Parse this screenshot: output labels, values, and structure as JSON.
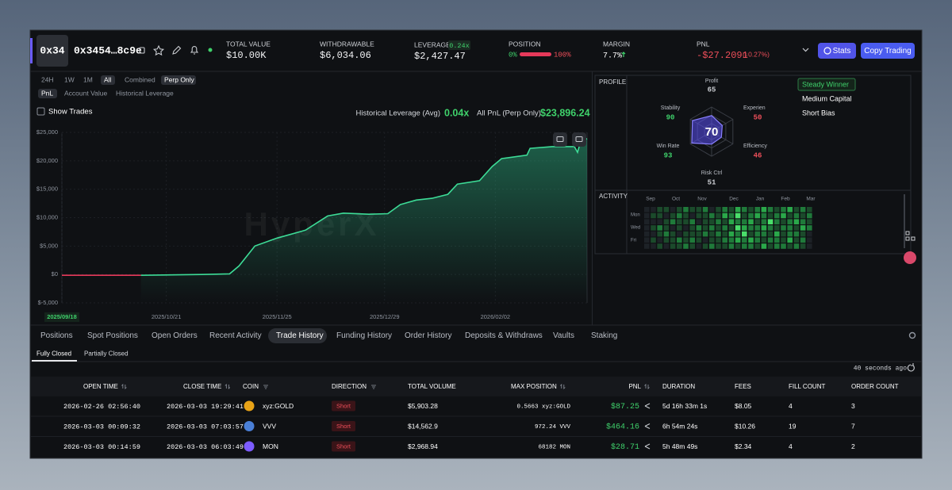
{
  "header": {
    "avatar": "0x34",
    "address": "0x3454…8c9e",
    "total_value": {
      "label": "TOTAL VALUE",
      "value": "$10.00K"
    },
    "withdrawable": {
      "label": "WITHDRAWABLE",
      "value": "$6,034.06"
    },
    "leverage": {
      "label": "LEVERAGE",
      "badge": "0.24x",
      "value": "$2,427.47"
    },
    "position": {
      "label": "POSITION",
      "long": "0%",
      "short": "100%"
    },
    "margin": {
      "label": "MARGIN",
      "value": "7.7%"
    },
    "pnl": {
      "label": "PNL",
      "value": "-$27.2091",
      "change": "(↓0.27%)"
    },
    "buttons": [
      "Stats",
      "Copy Trading"
    ]
  },
  "controls": {
    "ranges": [
      "24H",
      "1W",
      "1M",
      "All"
    ],
    "active_range": 3,
    "modes": [
      "Combined",
      "Perp Only"
    ],
    "active_mode": 1,
    "metrics": [
      "PnL",
      "Account Value",
      "Historical Leverage"
    ],
    "active_metric": 0,
    "show_trades": "Show Trades",
    "leverage_label": "Historical Leverage (Avg)",
    "leverage_value": "0.04x",
    "pnl_label": "All PnL (Perp Only)",
    "pnl_value": "$23,896.24"
  },
  "chart_data": {
    "type": "line",
    "watermark": "HyperX",
    "x": [
      "2025/09/18",
      "2025/10/13",
      "2025/11/01",
      "2025/11/10",
      "2025/11/13",
      "2025/11/18",
      "2025/11/25",
      "2025/12/04",
      "2025/12/11",
      "2025/12/16",
      "2025/12/24",
      "2025/12/30",
      "2026/01/03",
      "2026/01/08",
      "2026/01/13",
      "2026/01/18",
      "2026/01/21",
      "2026/01/28",
      "2026/02/01",
      "2026/02/04",
      "2026/02/12",
      "2026/02/13",
      "2026/02/20",
      "2026/02/27",
      "2026/02/28",
      "2026/03/01",
      "2026/03/03"
    ],
    "series": [
      {
        "color": "#e5395a",
        "values": [
          -150,
          -150,
          null,
          null,
          null,
          null,
          null,
          null,
          null,
          null,
          null,
          null,
          null,
          null,
          null,
          null,
          null,
          null,
          null,
          null,
          null,
          null,
          null,
          null,
          null,
          null,
          null
        ]
      },
      {
        "color": "#3ddc97",
        "values": [
          null,
          -150,
          0,
          100,
          1500,
          5000,
          6400,
          7800,
          10300,
          10800,
          10600,
          10700,
          12300,
          13100,
          13400,
          14100,
          15900,
          16500,
          19000,
          20400,
          21000,
          22200,
          22500,
          22500,
          21500,
          23500,
          23900
        ]
      }
    ],
    "xlim": [
      "2025/09/18",
      "2026/03/03"
    ],
    "xticks": [
      "2025/09/18",
      "2025/10/21",
      "2025/11/25",
      "2025/12/29",
      "2026/02/02"
    ],
    "ylim": [
      -5000,
      25000
    ],
    "yticks": [
      {
        "value": -5000,
        "label": "$-5,000"
      },
      {
        "value": 0,
        "label": "$0"
      },
      {
        "value": 5000,
        "label": "$5,000"
      },
      {
        "value": 10000,
        "label": "$10,000"
      },
      {
        "value": 15000,
        "label": "$15,000"
      },
      {
        "value": 20000,
        "label": "$20,000"
      },
      {
        "value": 25000,
        "label": "$25,000"
      }
    ],
    "grid": true
  },
  "profile": {
    "title": "PROFILE",
    "score": 70,
    "metrics": [
      {
        "label": "Profit",
        "value": 65,
        "color": "#c9ccd1"
      },
      {
        "label": "Experien",
        "value": 50,
        "color": "#ef4f5a"
      },
      {
        "label": "Efficiency",
        "value": 46,
        "color": "#ef4f5a"
      },
      {
        "label": "Risk Ctrl",
        "value": 51,
        "color": "#c9ccd1"
      },
      {
        "label": "Win Rate",
        "value": 93,
        "color": "#3fd16b"
      },
      {
        "label": "Stability",
        "value": 90,
        "color": "#3fd16b"
      }
    ],
    "tags": [
      "Steady Winner",
      "Medium Capital",
      "Short Bias"
    ]
  },
  "activity": {
    "title": "ACTIVITY",
    "months": [
      "Sep",
      "Oct",
      "Nov",
      "Dec",
      "Jan",
      "Feb",
      "Mar"
    ],
    "days": [
      "Mon",
      "Wed",
      "Fri"
    ],
    "level_colors": [
      "#1d2227",
      "#1b4a2b",
      "#1f7a3a",
      "#2aa84a",
      "#4ade6a"
    ],
    "levels": [
      [
        0,
        0,
        1,
        1,
        0,
        1,
        2,
        1,
        1,
        2,
        0,
        1,
        2,
        1,
        3,
        2,
        1,
        2,
        3,
        2,
        1,
        2,
        3,
        1,
        2,
        1
      ],
      [
        0,
        1,
        1,
        0,
        1,
        2,
        1,
        0,
        1,
        1,
        2,
        1,
        3,
        2,
        4,
        1,
        2,
        3,
        2,
        1,
        2,
        3,
        1,
        2,
        1,
        2
      ],
      [
        0,
        0,
        0,
        1,
        2,
        1,
        1,
        2,
        0,
        1,
        1,
        2,
        1,
        3,
        2,
        2,
        3,
        1,
        2,
        4,
        2,
        1,
        2,
        3,
        2,
        1
      ],
      [
        0,
        1,
        2,
        1,
        0,
        1,
        0,
        1,
        2,
        1,
        2,
        1,
        2,
        1,
        4,
        3,
        2,
        2,
        3,
        2,
        1,
        2,
        2,
        1,
        3,
        2
      ],
      [
        0,
        0,
        1,
        2,
        1,
        0,
        1,
        1,
        1,
        2,
        1,
        2,
        1,
        3,
        2,
        4,
        1,
        2,
        2,
        1,
        3,
        1,
        2,
        2,
        1,
        0
      ],
      [
        0,
        1,
        0,
        1,
        1,
        2,
        1,
        2,
        1,
        0,
        1,
        1,
        2,
        2,
        3,
        2,
        3,
        2,
        1,
        2,
        2,
        1,
        3,
        1,
        2,
        0
      ],
      [
        0,
        0,
        1,
        0,
        1,
        1,
        2,
        1,
        0,
        1,
        2,
        1,
        1,
        2,
        1,
        2,
        2,
        1,
        3,
        1,
        2,
        2,
        1,
        2,
        1,
        0
      ]
    ]
  },
  "tabs": [
    "Positions",
    "Spot Positions",
    "Open Orders",
    "Recent Activity",
    "Trade History",
    "Funding History",
    "Order History",
    "Deposits & Withdraws",
    "Vaults",
    "Staking"
  ],
  "active_tab": 4,
  "subtabs": [
    "Fully Closed",
    "Partially Closed"
  ],
  "active_subtab": 0,
  "updated": "40 seconds ago",
  "table": {
    "columns": [
      "OPEN TIME",
      "CLOSE TIME",
      "COIN",
      "DIRECTION",
      "TOTAL VOLUME",
      "MAX POSITION",
      "PNL",
      "DURATION",
      "FEES",
      "FILL COUNT",
      "ORDER COUNT"
    ],
    "rows": [
      [
        "2026-02-26 02:56:40",
        "2026-03-03 19:29:41",
        "xyz:GOLD",
        "Short",
        "$5,903.28",
        "0.5663 xyz:GOLD",
        "$87.25",
        "5d 16h 33m 1s",
        "$8.05",
        4,
        3
      ],
      [
        "2026-03-03 00:09:32",
        "2026-03-03 07:03:57",
        "VVV",
        "Short",
        "$14,562.9",
        "972.24 VVV",
        "$464.16",
        "6h 54m 24s",
        "$10.26",
        19,
        7
      ],
      [
        "2026-03-03 00:14:59",
        "2026-03-03 06:03:49",
        "MON",
        "Short",
        "$2,968.94",
        "68182 MON",
        "$28.71",
        "5h 48m 49s",
        "$2.34",
        4,
        2
      ]
    ]
  }
}
